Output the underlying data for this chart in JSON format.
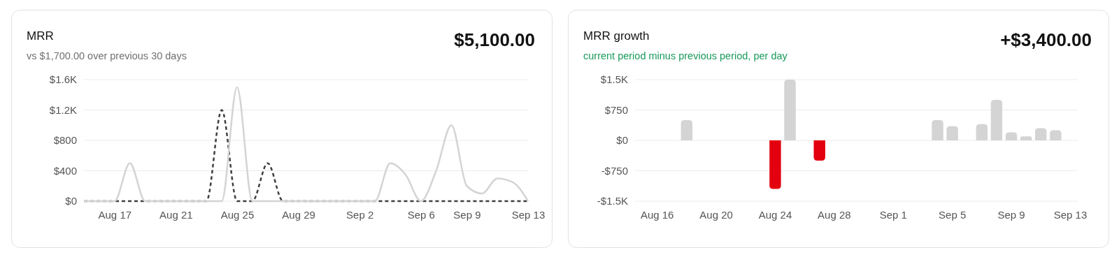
{
  "chart_data": [
    {
      "type": "line",
      "title": "MRR",
      "subtitle": "vs $1,700.00 over previous 30 days",
      "annotations": [
        "$5,100.00"
      ],
      "categories": [
        null,
        null,
        "Aug 17",
        null,
        null,
        null,
        "Aug 21",
        null,
        null,
        null,
        "Aug 25",
        null,
        null,
        null,
        "Aug 29",
        null,
        null,
        null,
        "Sep 2",
        null,
        null,
        null,
        "Sep 6",
        null,
        null,
        "Sep 9",
        null,
        null,
        null,
        "Sep 13"
      ],
      "series": [
        {
          "color": "#404040",
          "line_style": "dashed",
          "values": [
            0,
            0,
            0,
            0,
            0,
            0,
            0,
            0,
            0,
            1200,
            0,
            0,
            500,
            0,
            0,
            0,
            0,
            0,
            0,
            0,
            0,
            0,
            0,
            0,
            0,
            0,
            0,
            0,
            0,
            0
          ]
        },
        {
          "color": "#d4d4d4",
          "line_style": "solid",
          "values": [
            0,
            0,
            0,
            500,
            0,
            0,
            0,
            0,
            0,
            0,
            1500,
            0,
            0,
            0,
            0,
            0,
            0,
            0,
            0,
            0,
            500,
            350,
            0,
            400,
            1000,
            200,
            100,
            300,
            250,
            0
          ]
        }
      ],
      "ylim": [
        0,
        1600
      ],
      "yticks": [
        {
          "value": 0,
          "label": "$0"
        },
        {
          "value": 400,
          "label": "$400"
        },
        {
          "value": 800,
          "label": "$800"
        },
        {
          "value": 1200,
          "label": "$1.2K"
        },
        {
          "value": 1600,
          "label": "$1.6K"
        }
      ],
      "grid": "y",
      "marker": "none"
    },
    {
      "type": "bar",
      "title": "MRR growth",
      "subtitle": "current period minus previous period, per day",
      "annotations": [
        "+$3,400.00"
      ],
      "categories": [
        null,
        "Aug 16",
        null,
        null,
        null,
        "Aug 20",
        null,
        null,
        null,
        "Aug 24",
        null,
        null,
        null,
        "Aug 28",
        null,
        null,
        null,
        "Sep 1",
        null,
        null,
        null,
        "Sep 5",
        null,
        null,
        null,
        "Sep 9",
        null,
        null,
        null,
        "Sep 13"
      ],
      "values": [
        0,
        0,
        0,
        500,
        0,
        0,
        0,
        0,
        0,
        -1200,
        1500,
        0,
        -500,
        0,
        0,
        0,
        0,
        0,
        0,
        0,
        500,
        350,
        0,
        400,
        1000,
        200,
        100,
        300,
        250,
        0
      ],
      "colors": [
        "#d4d4d4",
        "#d4d4d4",
        "#d4d4d4",
        "#d4d4d4",
        "#d4d4d4",
        "#d4d4d4",
        "#d4d4d4",
        "#d4d4d4",
        "#d4d4d4",
        "#e3000f",
        "#d4d4d4",
        "#d4d4d4",
        "#e3000f",
        "#d4d4d4",
        "#d4d4d4",
        "#d4d4d4",
        "#d4d4d4",
        "#d4d4d4",
        "#d4d4d4",
        "#d4d4d4",
        "#d4d4d4",
        "#d4d4d4",
        "#d4d4d4",
        "#d4d4d4",
        "#d4d4d4",
        "#d4d4d4",
        "#d4d4d4",
        "#d4d4d4",
        "#d4d4d4",
        "#d4d4d4"
      ],
      "ylim": [
        -1500,
        1500
      ],
      "yticks": [
        {
          "value": -1500,
          "label": "-$1.5K"
        },
        {
          "value": -750,
          "label": "-$750"
        },
        {
          "value": 0,
          "label": "$0"
        },
        {
          "value": 750,
          "label": "$750"
        },
        {
          "value": 1500,
          "label": "$1.5K"
        }
      ],
      "grid": "y"
    }
  ]
}
